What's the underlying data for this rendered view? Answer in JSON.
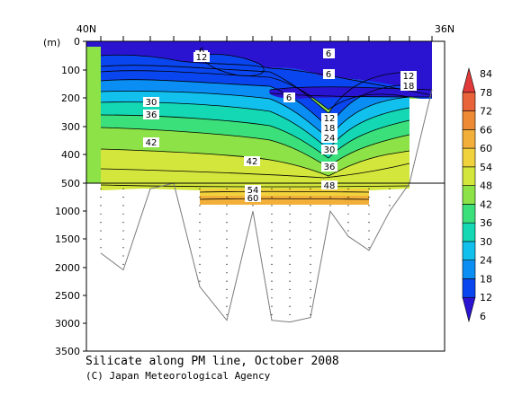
{
  "chart_data": {
    "type": "contour",
    "title": "Silicate along PM line, October 2008",
    "credit": "(C) Japan Meteorological Agency",
    "ylabel": "(m)",
    "top_labels": {
      "left": "40N",
      "right": "36N"
    },
    "y_ticks_upper": [
      0,
      100,
      200,
      300,
      400,
      500
    ],
    "y_ticks_lower": [
      1000,
      1500,
      2000,
      2500,
      3000,
      3500
    ],
    "ylim_upper": [
      0,
      500
    ],
    "ylim_lower": [
      500,
      3500
    ],
    "contour_levels": [
      6,
      12,
      18,
      24,
      30,
      36,
      42,
      48,
      54,
      60,
      66,
      72,
      78,
      84
    ],
    "colorbar_colors": [
      "#2a14d2",
      "#0a46f0",
      "#0a8ef4",
      "#12c0ee",
      "#14d8b4",
      "#3ce07a",
      "#8ce246",
      "#d2e63c",
      "#f0d23c",
      "#f2b03a",
      "#ee8a36",
      "#e8623a",
      "#e03a3a"
    ],
    "contour_labels": [
      {
        "text": "6"
      },
      {
        "text": "12"
      },
      {
        "text": "6"
      },
      {
        "text": "6"
      },
      {
        "text": "12"
      },
      {
        "text": "18"
      },
      {
        "text": "6"
      },
      {
        "text": "30"
      },
      {
        "text": "36"
      },
      {
        "text": "12"
      },
      {
        "text": "18"
      },
      {
        "text": "24"
      },
      {
        "text": "30"
      },
      {
        "text": "42"
      },
      {
        "text": "42"
      },
      {
        "text": "36"
      },
      {
        "text": "48"
      },
      {
        "text": "54"
      },
      {
        "text": "60"
      }
    ],
    "bottom_depth": [
      1750,
      2050,
      600,
      500,
      2350,
      2950,
      1000,
      2950,
      2980,
      2900,
      1000,
      1450,
      1700,
      1000,
      500,
      170
    ]
  }
}
